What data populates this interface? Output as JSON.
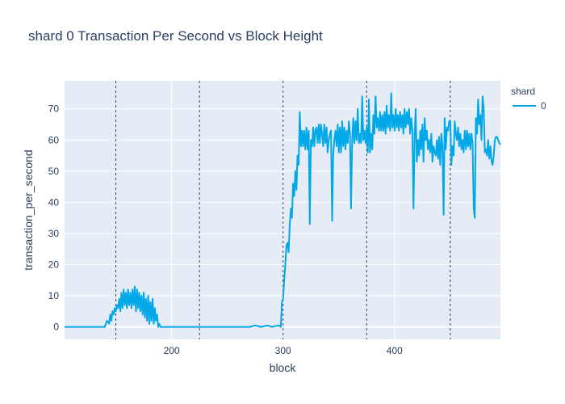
{
  "chart_data": {
    "type": "line",
    "title": "shard 0 Transaction Per Second vs Block Height",
    "xlabel": "block",
    "ylabel": "transaction_per_second",
    "xlim": [
      104,
      495
    ],
    "ylim": [
      -4,
      79
    ],
    "x_ticks": [
      200,
      300,
      400
    ],
    "y_ticks": [
      0,
      10,
      20,
      30,
      40,
      50,
      60,
      70
    ],
    "grid": true,
    "legend": {
      "title": "shard",
      "position": "top-right"
    },
    "vertical_lines": [
      150,
      225,
      300,
      375,
      450
    ],
    "series": [
      {
        "name": "0",
        "color": "#00a8e8",
        "points": [
          [
            104,
            0
          ],
          [
            110,
            0
          ],
          [
            120,
            0
          ],
          [
            130,
            0
          ],
          [
            140,
            0
          ],
          [
            142,
            2
          ],
          [
            144,
            1
          ],
          [
            145,
            4
          ],
          [
            146,
            2
          ],
          [
            147,
            5
          ],
          [
            148,
            4
          ],
          [
            149,
            6
          ],
          [
            150,
            5
          ],
          [
            151,
            7
          ],
          [
            152,
            6
          ],
          [
            153,
            9
          ],
          [
            154,
            5
          ],
          [
            155,
            11
          ],
          [
            156,
            6
          ],
          [
            157,
            12
          ],
          [
            158,
            7
          ],
          [
            159,
            11
          ],
          [
            160,
            6
          ],
          [
            161,
            12
          ],
          [
            162,
            7
          ],
          [
            163,
            11
          ],
          [
            164,
            6
          ],
          [
            165,
            12
          ],
          [
            166,
            7
          ],
          [
            167,
            13
          ],
          [
            168,
            5
          ],
          [
            169,
            12
          ],
          [
            170,
            6
          ],
          [
            171,
            11
          ],
          [
            172,
            5
          ],
          [
            173,
            10
          ],
          [
            174,
            4
          ],
          [
            175,
            11
          ],
          [
            176,
            3
          ],
          [
            177,
            9
          ],
          [
            178,
            2
          ],
          [
            179,
            10
          ],
          [
            180,
            1
          ],
          [
            181,
            8
          ],
          [
            182,
            2
          ],
          [
            183,
            9
          ],
          [
            184,
            1
          ],
          [
            185,
            6
          ],
          [
            186,
            2
          ],
          [
            187,
            4
          ],
          [
            188,
            0
          ],
          [
            189,
            1
          ],
          [
            190,
            0
          ],
          [
            200,
            0
          ],
          [
            220,
            0
          ],
          [
            240,
            0
          ],
          [
            260,
            0
          ],
          [
            270,
            0
          ],
          [
            275,
            0.5
          ],
          [
            280,
            0
          ],
          [
            286,
            0.5
          ],
          [
            290,
            0
          ],
          [
            296,
            0.5
          ],
          [
            298,
            0
          ],
          [
            299,
            8
          ],
          [
            300,
            9
          ],
          [
            301,
            15
          ],
          [
            302,
            20
          ],
          [
            303,
            26
          ],
          [
            304,
            27
          ],
          [
            305,
            24
          ],
          [
            306,
            33
          ],
          [
            307,
            38
          ],
          [
            308,
            35
          ],
          [
            309,
            46
          ],
          [
            310,
            42
          ],
          [
            311,
            50
          ],
          [
            312,
            44
          ],
          [
            313,
            55
          ],
          [
            314,
            52
          ],
          [
            315,
            69
          ],
          [
            316,
            58
          ],
          [
            317,
            63
          ],
          [
            318,
            58
          ],
          [
            319,
            63
          ],
          [
            320,
            57
          ],
          [
            321,
            64
          ],
          [
            322,
            57
          ],
          [
            323,
            63
          ],
          [
            324,
            33
          ],
          [
            325,
            60
          ],
          [
            326,
            58
          ],
          [
            327,
            64
          ],
          [
            328,
            58
          ],
          [
            329,
            63
          ],
          [
            330,
            64
          ],
          [
            331,
            59
          ],
          [
            332,
            65
          ],
          [
            333,
            59
          ],
          [
            334,
            65
          ],
          [
            335,
            62
          ],
          [
            336,
            58
          ],
          [
            337,
            65
          ],
          [
            338,
            59
          ],
          [
            339,
            64
          ],
          [
            340,
            56
          ],
          [
            341,
            60
          ],
          [
            342,
            62
          ],
          [
            343,
            63
          ],
          [
            344,
            34
          ],
          [
            345,
            55
          ],
          [
            346,
            60
          ],
          [
            347,
            63
          ],
          [
            348,
            58
          ],
          [
            349,
            65
          ],
          [
            350,
            56
          ],
          [
            351,
            64
          ],
          [
            352,
            56
          ],
          [
            353,
            66
          ],
          [
            354,
            58
          ],
          [
            355,
            64
          ],
          [
            356,
            57
          ],
          [
            357,
            63
          ],
          [
            358,
            59
          ],
          [
            359,
            66
          ],
          [
            360,
            62
          ],
          [
            361,
            38
          ],
          [
            362,
            60
          ],
          [
            363,
            67
          ],
          [
            364,
            59
          ],
          [
            365,
            66
          ],
          [
            366,
            60
          ],
          [
            367,
            70
          ],
          [
            368,
            59
          ],
          [
            369,
            62
          ],
          [
            370,
            59
          ],
          [
            371,
            74
          ],
          [
            372,
            60
          ],
          [
            373,
            63
          ],
          [
            374,
            59
          ],
          [
            375,
            64
          ],
          [
            376,
            56
          ],
          [
            377,
            73
          ],
          [
            378,
            56
          ],
          [
            379,
            62
          ],
          [
            380,
            57
          ],
          [
            381,
            68
          ],
          [
            382,
            62
          ],
          [
            383,
            74
          ],
          [
            384,
            64
          ],
          [
            385,
            67
          ],
          [
            386,
            63
          ],
          [
            387,
            69
          ],
          [
            388,
            63
          ],
          [
            389,
            68
          ],
          [
            390,
            63
          ],
          [
            391,
            69
          ],
          [
            392,
            62
          ],
          [
            393,
            71
          ],
          [
            394,
            64
          ],
          [
            395,
            68
          ],
          [
            396,
            63
          ],
          [
            397,
            75
          ],
          [
            398,
            64
          ],
          [
            399,
            68
          ],
          [
            400,
            63
          ],
          [
            401,
            70
          ],
          [
            402,
            64
          ],
          [
            403,
            68
          ],
          [
            404,
            63
          ],
          [
            405,
            69
          ],
          [
            406,
            64
          ],
          [
            407,
            68
          ],
          [
            408,
            62
          ],
          [
            409,
            70
          ],
          [
            410,
            64
          ],
          [
            411,
            69
          ],
          [
            412,
            65
          ],
          [
            413,
            70
          ],
          [
            414,
            62
          ],
          [
            415,
            67
          ],
          [
            416,
            63
          ],
          [
            417,
            38
          ],
          [
            418,
            62
          ],
          [
            419,
            70
          ],
          [
            420,
            53
          ],
          [
            421,
            60
          ],
          [
            422,
            55
          ],
          [
            423,
            63
          ],
          [
            424,
            57
          ],
          [
            425,
            65
          ],
          [
            426,
            53
          ],
          [
            427,
            67
          ],
          [
            428,
            60
          ],
          [
            429,
            63
          ],
          [
            430,
            57
          ],
          [
            431,
            60
          ],
          [
            432,
            56
          ],
          [
            433,
            62
          ],
          [
            434,
            53
          ],
          [
            435,
            58
          ],
          [
            436,
            56
          ],
          [
            437,
            55
          ],
          [
            438,
            60
          ],
          [
            439,
            54
          ],
          [
            440,
            61
          ],
          [
            441,
            52
          ],
          [
            442,
            62
          ],
          [
            443,
            58
          ],
          [
            444,
            36
          ],
          [
            445,
            67
          ],
          [
            446,
            57
          ],
          [
            447,
            64
          ],
          [
            448,
            63
          ],
          [
            449,
            66
          ],
          [
            450,
            66
          ],
          [
            451,
            52
          ],
          [
            452,
            58
          ],
          [
            453,
            55
          ],
          [
            454,
            66
          ],
          [
            455,
            62
          ],
          [
            456,
            60
          ],
          [
            457,
            64
          ],
          [
            458,
            58
          ],
          [
            459,
            62
          ],
          [
            460,
            57
          ],
          [
            461,
            60
          ],
          [
            462,
            56
          ],
          [
            463,
            63
          ],
          [
            464,
            57
          ],
          [
            465,
            63
          ],
          [
            466,
            58
          ],
          [
            467,
            62
          ],
          [
            468,
            57
          ],
          [
            469,
            62
          ],
          [
            470,
            59
          ],
          [
            471,
            38
          ],
          [
            472,
            35
          ],
          [
            473,
            67
          ],
          [
            474,
            62
          ],
          [
            475,
            73
          ],
          [
            476,
            65
          ],
          [
            477,
            68
          ],
          [
            478,
            60
          ],
          [
            479,
            74
          ],
          [
            480,
            70
          ],
          [
            481,
            56
          ],
          [
            482,
            57
          ],
          [
            483,
            55
          ],
          [
            484,
            60
          ],
          [
            485,
            54
          ],
          [
            486,
            58
          ],
          [
            487,
            53
          ],
          [
            488,
            52
          ],
          [
            489,
            55
          ],
          [
            490,
            60
          ],
          [
            491,
            61
          ],
          [
            492,
            61
          ],
          [
            493,
            60
          ],
          [
            494,
            59
          ],
          [
            495,
            58.5
          ]
        ]
      }
    ]
  }
}
